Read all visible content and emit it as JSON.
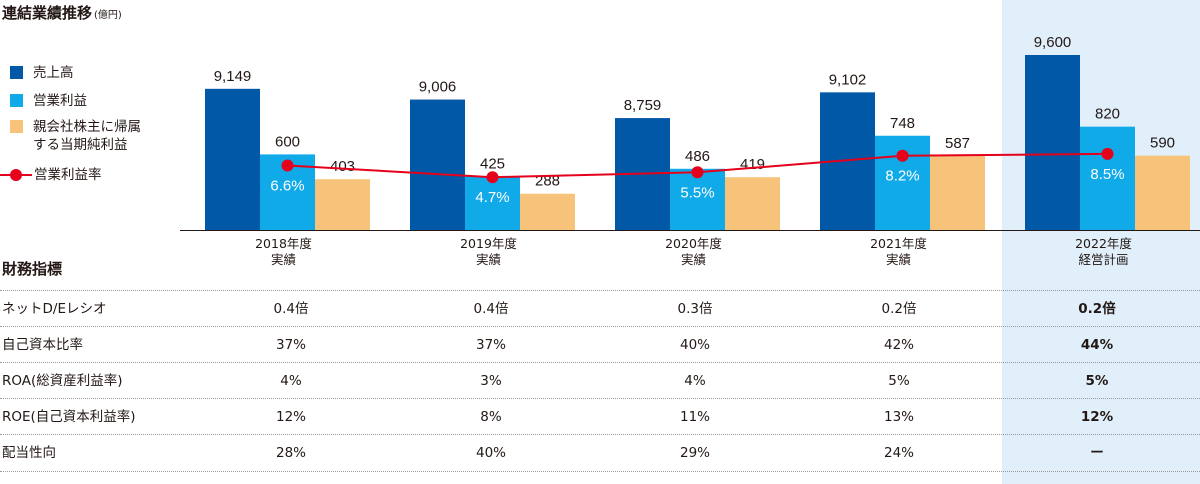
{
  "title": "連結業績推移",
  "title_unit": "(億円)",
  "colors": {
    "sales": "#0058a6",
    "operating_income": "#10aae9",
    "net_income": "#f7c279",
    "margin": "#e5001c",
    "highlight": "#e0eff9"
  },
  "legend": [
    {
      "label": "売上高",
      "type": "swatch",
      "color": "#0058a6"
    },
    {
      "label": "営業利益",
      "type": "swatch",
      "color": "#10aae9"
    },
    {
      "label": "親会社株主に帰属\nする当期純利益",
      "type": "swatch",
      "color": "#f7c279"
    },
    {
      "label": "営業利益率",
      "type": "line",
      "color": "#e5001c"
    }
  ],
  "chart_data": {
    "type": "bar",
    "title": "連結業績推移",
    "unit": "億円",
    "categories": [
      "2018年度\n実績",
      "2019年度\n実績",
      "2020年度\n実績",
      "2021年度\n実績",
      "2022年度\n経営計画"
    ],
    "series": [
      {
        "name": "売上高",
        "values": [
          9149,
          9006,
          8759,
          9102,
          9600
        ],
        "labels": [
          "9,149",
          "9,006",
          "8,759",
          "9,102",
          "9,600"
        ]
      },
      {
        "name": "営業利益",
        "values": [
          600,
          425,
          486,
          748,
          820
        ],
        "labels": [
          "600",
          "425",
          "486",
          "748",
          "820"
        ]
      },
      {
        "name": "親会社株主に帰属する当期純利益",
        "values": [
          403,
          288,
          419,
          587,
          590
        ],
        "labels": [
          "403",
          "288",
          "419",
          "587",
          "590"
        ]
      }
    ],
    "line_series": {
      "name": "営業利益率",
      "values": [
        6.6,
        4.7,
        5.5,
        8.2,
        8.5
      ],
      "labels": [
        "6.6%",
        "4.7%",
        "5.5%",
        "8.2%",
        "8.5%"
      ],
      "type": "line"
    },
    "axis_break": true,
    "grid": false,
    "legend_position": "left"
  },
  "metrics": {
    "title": "財務指標",
    "rows": [
      {
        "label": "ネットD/Eレシオ",
        "values": [
          "0.4倍",
          "0.4倍",
          "0.3倍",
          "0.2倍",
          "0.2倍"
        ]
      },
      {
        "label": "自己資本比率",
        "values": [
          "37%",
          "37%",
          "40%",
          "42%",
          "44%"
        ]
      },
      {
        "label": "ROA(総資産利益率)",
        "values": [
          "4%",
          "3%",
          "4%",
          "5%",
          "5%"
        ]
      },
      {
        "label": "ROE(自己資本利益率)",
        "values": [
          "12%",
          "8%",
          "11%",
          "13%",
          "12%"
        ]
      },
      {
        "label": "配当性向",
        "values": [
          "28%",
          "40%",
          "29%",
          "24%",
          "ー"
        ]
      }
    ]
  }
}
